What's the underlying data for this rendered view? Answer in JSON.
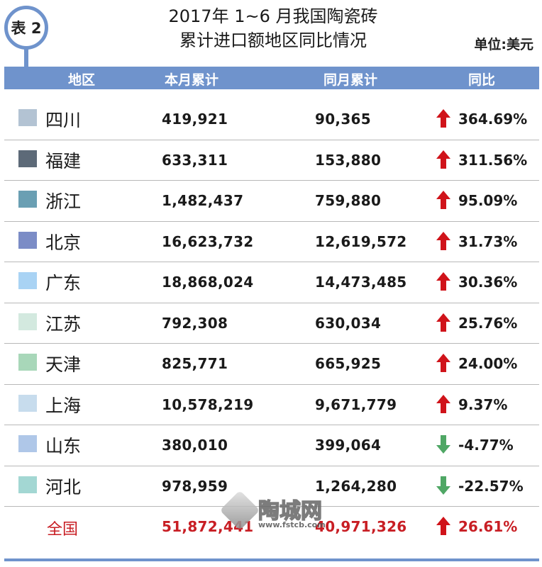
{
  "badge": "表 2",
  "title_line1": "2017年 1~6 月我国陶瓷砖",
  "title_line2": "累计进口额地区同比情况",
  "unit": "单位:美元",
  "headers": {
    "region": "地区",
    "current": "本月累计",
    "previous": "同月累计",
    "yoy": "同比"
  },
  "rows": [
    {
      "region": "四川",
      "current": "419,921",
      "previous": "90,365",
      "yoy": "364.69%",
      "direction": "up",
      "color": "#b3c3d3"
    },
    {
      "region": "福建",
      "current": "633,311",
      "previous": "153,880",
      "yoy": "311.56%",
      "direction": "up",
      "color": "#5d6a78"
    },
    {
      "region": "浙江",
      "current": "1,482,437",
      "previous": "759,880",
      "yoy": "95.09%",
      "direction": "up",
      "color": "#6a9fb3"
    },
    {
      "region": "北京",
      "current": "16,623,732",
      "previous": "12,619,572",
      "yoy": "31.73%",
      "direction": "up",
      "color": "#7b8cc6"
    },
    {
      "region": "广东",
      "current": "18,868,024",
      "previous": "14,473,485",
      "yoy": "30.36%",
      "direction": "up",
      "color": "#a9d3f4"
    },
    {
      "region": "江苏",
      "current": "792,308",
      "previous": "630,034",
      "yoy": "25.76%",
      "direction": "up",
      "color": "#d3e9df"
    },
    {
      "region": "天津",
      "current": "825,771",
      "previous": "665,925",
      "yoy": "24.00%",
      "direction": "up",
      "color": "#a8d7b9"
    },
    {
      "region": "上海",
      "current": "10,578,219",
      "previous": "9,671,779",
      "yoy": "9.37%",
      "direction": "up",
      "color": "#c7dced"
    },
    {
      "region": "山东",
      "current": "380,010",
      "previous": "399,064",
      "yoy": "-4.77%",
      "direction": "down",
      "color": "#afc7e8"
    },
    {
      "region": "河北",
      "current": "978,959",
      "previous": "1,264,280",
      "yoy": "-22.57%",
      "direction": "down",
      "color": "#a3d7d3"
    }
  ],
  "total": {
    "region": "全国",
    "current": "51,872,441",
    "previous": "40,971,326",
    "yoy": "26.61%",
    "direction": "up"
  },
  "watermark": {
    "text": "陶城网",
    "url": "www.fstcb.com"
  },
  "colors": {
    "accent": "#6f93cc",
    "up": "#d0131a",
    "down": "#4fa765",
    "total_text": "#c81e24"
  }
}
